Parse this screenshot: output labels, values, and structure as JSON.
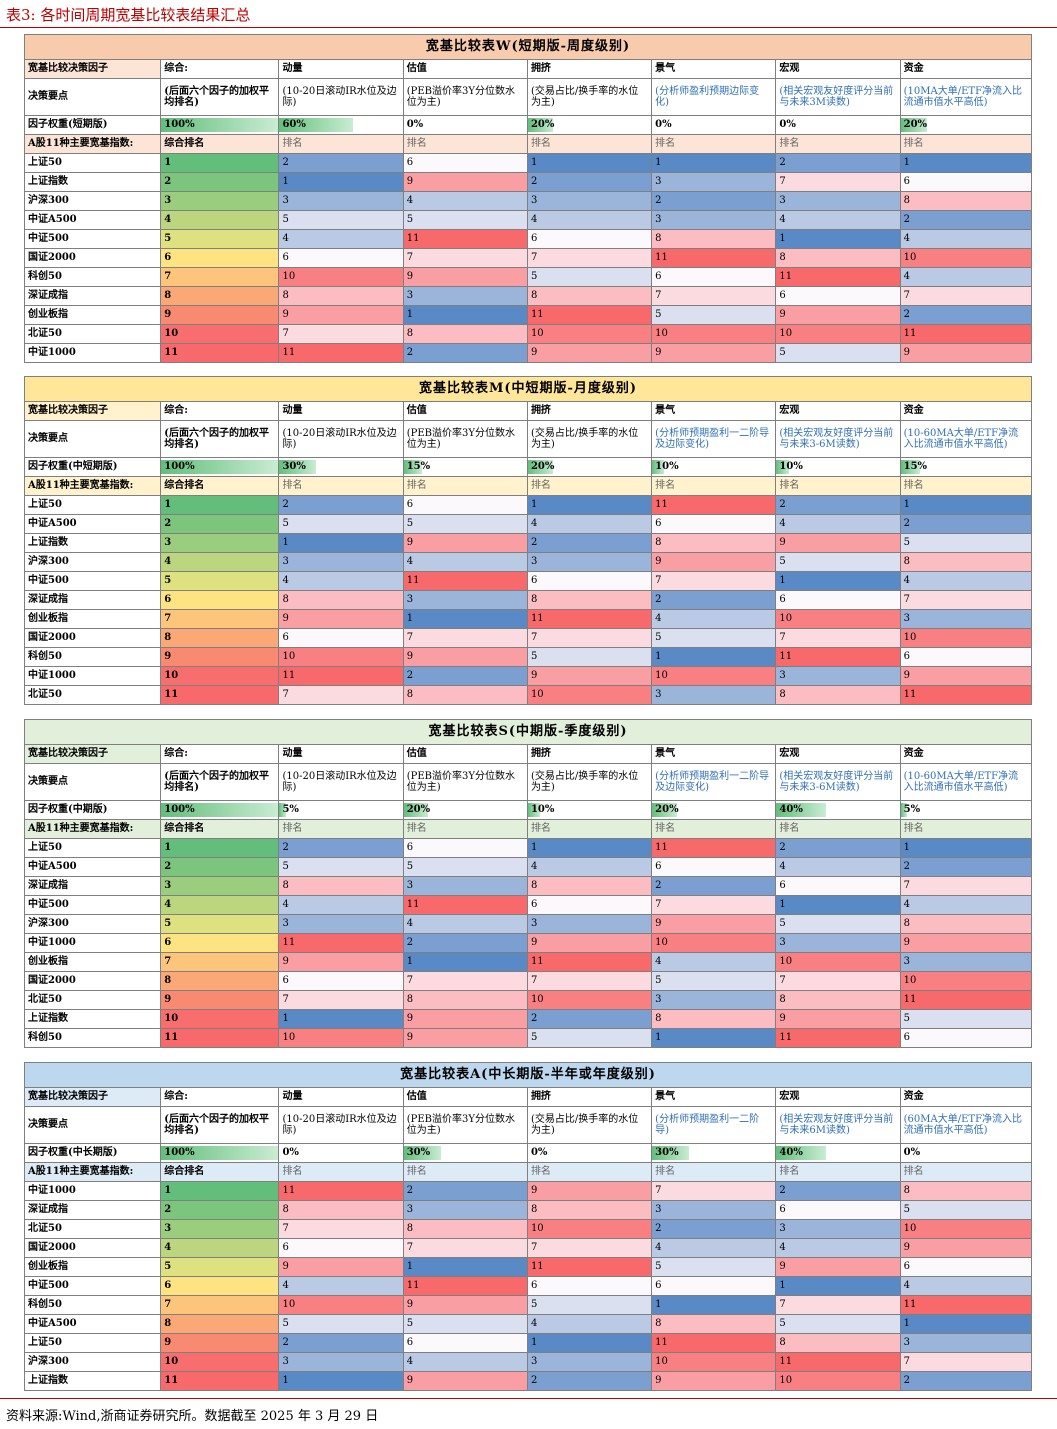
{
  "page_title": "表3:  各时间周期宽基比较表结果汇总",
  "footer": "资料来源:Wind,浙商证券研究所。数据截至 2025 年 3 月 29 日",
  "colors": {
    "rank": [
      "#63be7b",
      "#7cc57d",
      "#9bcd7f",
      "#bcd680",
      "#dde17f",
      "#fee383",
      "#fdc57c",
      "#fba877",
      "#f98a72",
      "#f86d6d",
      "#f8696b"
    ],
    "factor": [
      "#5a8ac6",
      "#7a9fd0",
      "#9ab4da",
      "#bacae5",
      "#dae0ef",
      "#fbf9fb",
      "#fbdbe0",
      "#fbbdc2",
      "#f99fa3",
      "#f88083",
      "#f8696b"
    ]
  },
  "factor_headers": [
    "综合:",
    "动量",
    "估值",
    "拥挤",
    "景气",
    "宏观",
    "资金"
  ],
  "tables": [
    {
      "title": "宽基比较表W(短期版-周度级别)",
      "header_bg": "#f8cbad",
      "rowlabel_bg": "#fce4d6",
      "decision_label": "宽基比较决策因子",
      "points_label": "决策要点",
      "points": [
        "(后面六个因子的加权平均排名)",
        "(10-20日滚动IR水位及边际)",
        "(PEB溢价率3Y分位数水位为主)",
        "(交易占比/换手率的水位为主)",
        "(分析师盈利预期边际变化)",
        "(相关宏观友好度评分当前与未来3M读数)",
        "(10MA大单/ETF净流入比流通市值水平高低)"
      ],
      "weight_label": "因子权重(短期版)",
      "weights": [
        "100%",
        "60%",
        "0%",
        "20%",
        "0%",
        "0%",
        "20%"
      ],
      "weight_values": [
        1.0,
        0.6,
        0,
        0.2,
        0,
        0,
        0.2
      ],
      "index_label": "A股11种主要宽基指数:",
      "rank_label": "综合排名",
      "sub_label": "排名",
      "rows": [
        [
          "上证50",
          1,
          2,
          6,
          1,
          1,
          2,
          1
        ],
        [
          "上证指数",
          2,
          1,
          9,
          2,
          3,
          7,
          6
        ],
        [
          "沪深300",
          3,
          3,
          4,
          3,
          2,
          3,
          8
        ],
        [
          "中证A500",
          4,
          5,
          5,
          4,
          3,
          4,
          2
        ],
        [
          "中证500",
          5,
          4,
          11,
          6,
          8,
          1,
          4
        ],
        [
          "国证2000",
          6,
          6,
          7,
          7,
          11,
          8,
          10
        ],
        [
          "科创50",
          7,
          10,
          9,
          5,
          6,
          11,
          4
        ],
        [
          "深证成指",
          8,
          8,
          3,
          8,
          7,
          6,
          7
        ],
        [
          "创业板指",
          9,
          9,
          1,
          11,
          5,
          9,
          2
        ],
        [
          "北证50",
          10,
          7,
          8,
          10,
          10,
          10,
          11
        ],
        [
          "中证1000",
          11,
          11,
          2,
          9,
          9,
          5,
          9
        ]
      ]
    },
    {
      "title": "宽基比较表M(中短期版-月度级别)",
      "header_bg": "#ffe699",
      "rowlabel_bg": "#fff2cc",
      "decision_label": "宽基比较决策因子",
      "points_label": "决策要点",
      "points": [
        "(后面六个因子的加权平均排名)",
        "(10-20日滚动IR水位及边际)",
        "(PEB溢价率3Y分位数水位为主)",
        "(交易占比/换手率的水位为主)",
        "(分析师预期盈利一二阶导及边际变化)",
        "(相关宏观友好度评分当前与未来3-6M读数)",
        "(10-60MA大单/ETF净流入比流通市值水平高低)"
      ],
      "weight_label": "因子权重(中短期版)",
      "weights": [
        "100%",
        "30%",
        "15%",
        "20%",
        "10%",
        "10%",
        "15%"
      ],
      "weight_values": [
        1.0,
        0.3,
        0.15,
        0.2,
        0.1,
        0.1,
        0.15
      ],
      "index_label": "A股11种主要宽基指数:",
      "rank_label": "综合排名",
      "sub_label": "排名",
      "rows": [
        [
          "上证50",
          1,
          2,
          6,
          1,
          11,
          2,
          1
        ],
        [
          "中证A500",
          2,
          5,
          5,
          4,
          6,
          4,
          2
        ],
        [
          "上证指数",
          3,
          1,
          9,
          2,
          8,
          9,
          5
        ],
        [
          "沪深300",
          4,
          3,
          4,
          3,
          9,
          5,
          8
        ],
        [
          "中证500",
          5,
          4,
          11,
          6,
          7,
          1,
          4
        ],
        [
          "深证成指",
          6,
          8,
          3,
          8,
          2,
          6,
          7
        ],
        [
          "创业板指",
          7,
          9,
          1,
          11,
          4,
          10,
          3
        ],
        [
          "国证2000",
          8,
          6,
          7,
          7,
          5,
          7,
          10
        ],
        [
          "科创50",
          9,
          10,
          9,
          5,
          1,
          11,
          6
        ],
        [
          "中证1000",
          10,
          11,
          2,
          9,
          10,
          3,
          9
        ],
        [
          "北证50",
          11,
          7,
          8,
          10,
          3,
          8,
          11
        ]
      ]
    },
    {
      "title": "宽基比较表S(中期版-季度级别)",
      "header_bg": "#e2efda",
      "rowlabel_bg": "#e2efda",
      "decision_label": "宽基比较决策因子",
      "points_label": "决策要点",
      "points": [
        "(后面六个因子的加权平均排名)",
        "(10-20日滚动IR水位及边际)",
        "(PEB溢价率3Y分位数水位为主)",
        "(交易占比/换手率的水位为主)",
        "(分析师预期盈利一二阶导及边际变化)",
        "(相关宏观友好度评分当前与未来3-6M读数)",
        "(10-60MA大单/ETF净流入比流通市值水平高低)"
      ],
      "weight_label": "因子权重(中期版)",
      "weights": [
        "100%",
        "5%",
        "20%",
        "10%",
        "20%",
        "40%",
        "5%"
      ],
      "weight_values": [
        1.0,
        0.05,
        0.2,
        0.1,
        0.2,
        0.4,
        0.05
      ],
      "index_label": "A股11种主要宽基指数:",
      "rank_label": "综合排名",
      "sub_label": "排名",
      "rows": [
        [
          "上证50",
          1,
          2,
          6,
          1,
          11,
          2,
          1
        ],
        [
          "中证A500",
          2,
          5,
          5,
          4,
          6,
          4,
          2
        ],
        [
          "深证成指",
          3,
          8,
          3,
          8,
          2,
          6,
          7
        ],
        [
          "中证500",
          4,
          4,
          11,
          6,
          7,
          1,
          4
        ],
        [
          "沪深300",
          5,
          3,
          4,
          3,
          9,
          5,
          8
        ],
        [
          "中证1000",
          6,
          11,
          2,
          9,
          10,
          3,
          9
        ],
        [
          "创业板指",
          7,
          9,
          1,
          11,
          4,
          10,
          3
        ],
        [
          "国证2000",
          8,
          6,
          7,
          7,
          5,
          7,
          10
        ],
        [
          "北证50",
          9,
          7,
          8,
          10,
          3,
          8,
          11
        ],
        [
          "上证指数",
          10,
          1,
          9,
          2,
          8,
          9,
          5
        ],
        [
          "科创50",
          11,
          10,
          9,
          5,
          1,
          11,
          6
        ]
      ]
    },
    {
      "title": "宽基比较表A(中长期版-半年或年度级别)",
      "header_bg": "#bdd7ee",
      "rowlabel_bg": "#ddebf7",
      "decision_label": "宽基比较决策因子",
      "points_label": "决策要点",
      "points": [
        "(后面六个因子的加权平均排名)",
        "(10-20日滚动IR水位及边际)",
        "(PEB溢价率3Y分位数水位为主)",
        "(交易占比/换手率的水位为主)",
        "(分析师预期盈利一二阶导)",
        "(相关宏观友好度评分当前与未来6M读数)",
        "(60MA大单/ETF净流入比流通市值水平高低)"
      ],
      "weight_label": "因子权重(中长期版)",
      "weights": [
        "100%",
        "0%",
        "30%",
        "0%",
        "30%",
        "40%",
        "0%"
      ],
      "weight_values": [
        1.0,
        0,
        0.3,
        0,
        0.3,
        0.4,
        0
      ],
      "index_label": "A股11种主要宽基指数:",
      "rank_label": "综合排名",
      "sub_label": "排名",
      "rows": [
        [
          "中证1000",
          1,
          11,
          2,
          9,
          7,
          2,
          8
        ],
        [
          "深证成指",
          2,
          8,
          3,
          8,
          3,
          6,
          5
        ],
        [
          "北证50",
          3,
          7,
          8,
          10,
          2,
          3,
          10
        ],
        [
          "国证2000",
          4,
          6,
          7,
          7,
          4,
          4,
          9
        ],
        [
          "创业板指",
          5,
          9,
          1,
          11,
          5,
          9,
          6
        ],
        [
          "中证500",
          6,
          4,
          11,
          6,
          6,
          1,
          4
        ],
        [
          "科创50",
          7,
          10,
          9,
          5,
          1,
          7,
          11
        ],
        [
          "中证A500",
          8,
          5,
          5,
          4,
          8,
          5,
          1
        ],
        [
          "上证50",
          9,
          2,
          6,
          1,
          11,
          8,
          3
        ],
        [
          "沪深300",
          10,
          3,
          4,
          3,
          10,
          11,
          7
        ],
        [
          "上证指数",
          11,
          1,
          9,
          2,
          9,
          10,
          2
        ]
      ]
    }
  ]
}
